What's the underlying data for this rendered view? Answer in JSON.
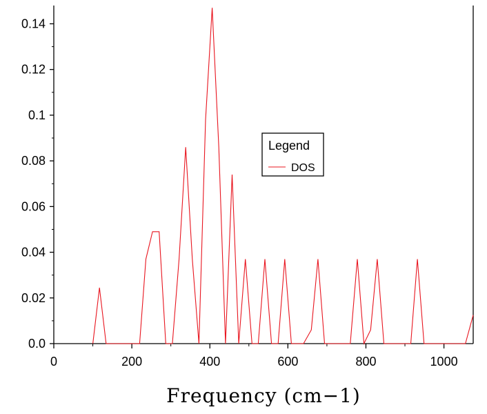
{
  "chart_data": {
    "type": "line",
    "xlabel": "Frequency (cm−1)",
    "ylabel": "",
    "xlim": [
      0,
      1075
    ],
    "ylim": [
      0,
      0.148
    ],
    "xticks": [
      0,
      200,
      400,
      600,
      800,
      1000
    ],
    "yticks": [
      0.0,
      0.02,
      0.04,
      0.06,
      0.08,
      0.1,
      0.12,
      0.14
    ],
    "xtick_labels": [
      "0",
      "200",
      "400",
      "600",
      "800",
      "1000"
    ],
    "ytick_labels": [
      "0.0",
      "0.02",
      "0.04",
      "0.06",
      "0.08",
      "0.1",
      "0.12",
      "0.14"
    ],
    "grid": false,
    "legend": {
      "title": "Legend",
      "placement": "center-right",
      "entries": [
        "DOS"
      ]
    },
    "series": [
      {
        "name": "DOS",
        "color": "#e8141e",
        "x": [
          100,
          117,
          134,
          220,
          236,
          253,
          270,
          287,
          304,
          321,
          338,
          355,
          372,
          389,
          406,
          423,
          440,
          457,
          474,
          491,
          508,
          524,
          541,
          558,
          575,
          592,
          609,
          640,
          660,
          677,
          694,
          760,
          778,
          795,
          812,
          829,
          846,
          915,
          932,
          949,
          1055,
          1075
        ],
        "y": [
          0.0,
          0.0245,
          0.0,
          0.0,
          0.037,
          0.049,
          0.049,
          0.0,
          0.0,
          0.037,
          0.086,
          0.037,
          0.0,
          0.098,
          0.147,
          0.086,
          0.0,
          0.074,
          0.0,
          0.037,
          0.0,
          0.0,
          0.037,
          0.0,
          0.0,
          0.037,
          0.0,
          0.0,
          0.006,
          0.037,
          0.0,
          0.0,
          0.037,
          0.0,
          0.006,
          0.037,
          0.0,
          0.0,
          0.037,
          0.0,
          0.0,
          0.0125
        ]
      }
    ]
  }
}
